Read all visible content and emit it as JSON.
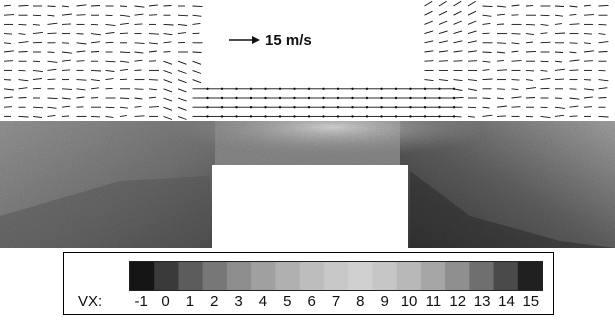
{
  "vector_panel": {
    "scale_label": "15 m/s"
  },
  "colorbar": {
    "title": "VX:",
    "ticks": [
      "-1",
      "0",
      "1",
      "2",
      "3",
      "4",
      "5",
      "6",
      "7",
      "8",
      "9",
      "10",
      "11",
      "12",
      "13",
      "14",
      "15"
    ],
    "levels": [
      "#151515",
      "#3a3a3a",
      "#5c5c5c",
      "#777777",
      "#8d8d8d",
      "#a0a0a0",
      "#b0b0b0",
      "#bdbdbd",
      "#c8c8c8",
      "#d0d0d0",
      "#c6c6c6",
      "#b8b8b8",
      "#a6a6a6",
      "#8f8f8f",
      "#6f6f6f",
      "#4a4a4a",
      "#202020"
    ]
  },
  "colors": {
    "background": "#ffffff",
    "vectors": "#111111",
    "building": "#ffffff",
    "contour_base": "#8a8a8a"
  }
}
